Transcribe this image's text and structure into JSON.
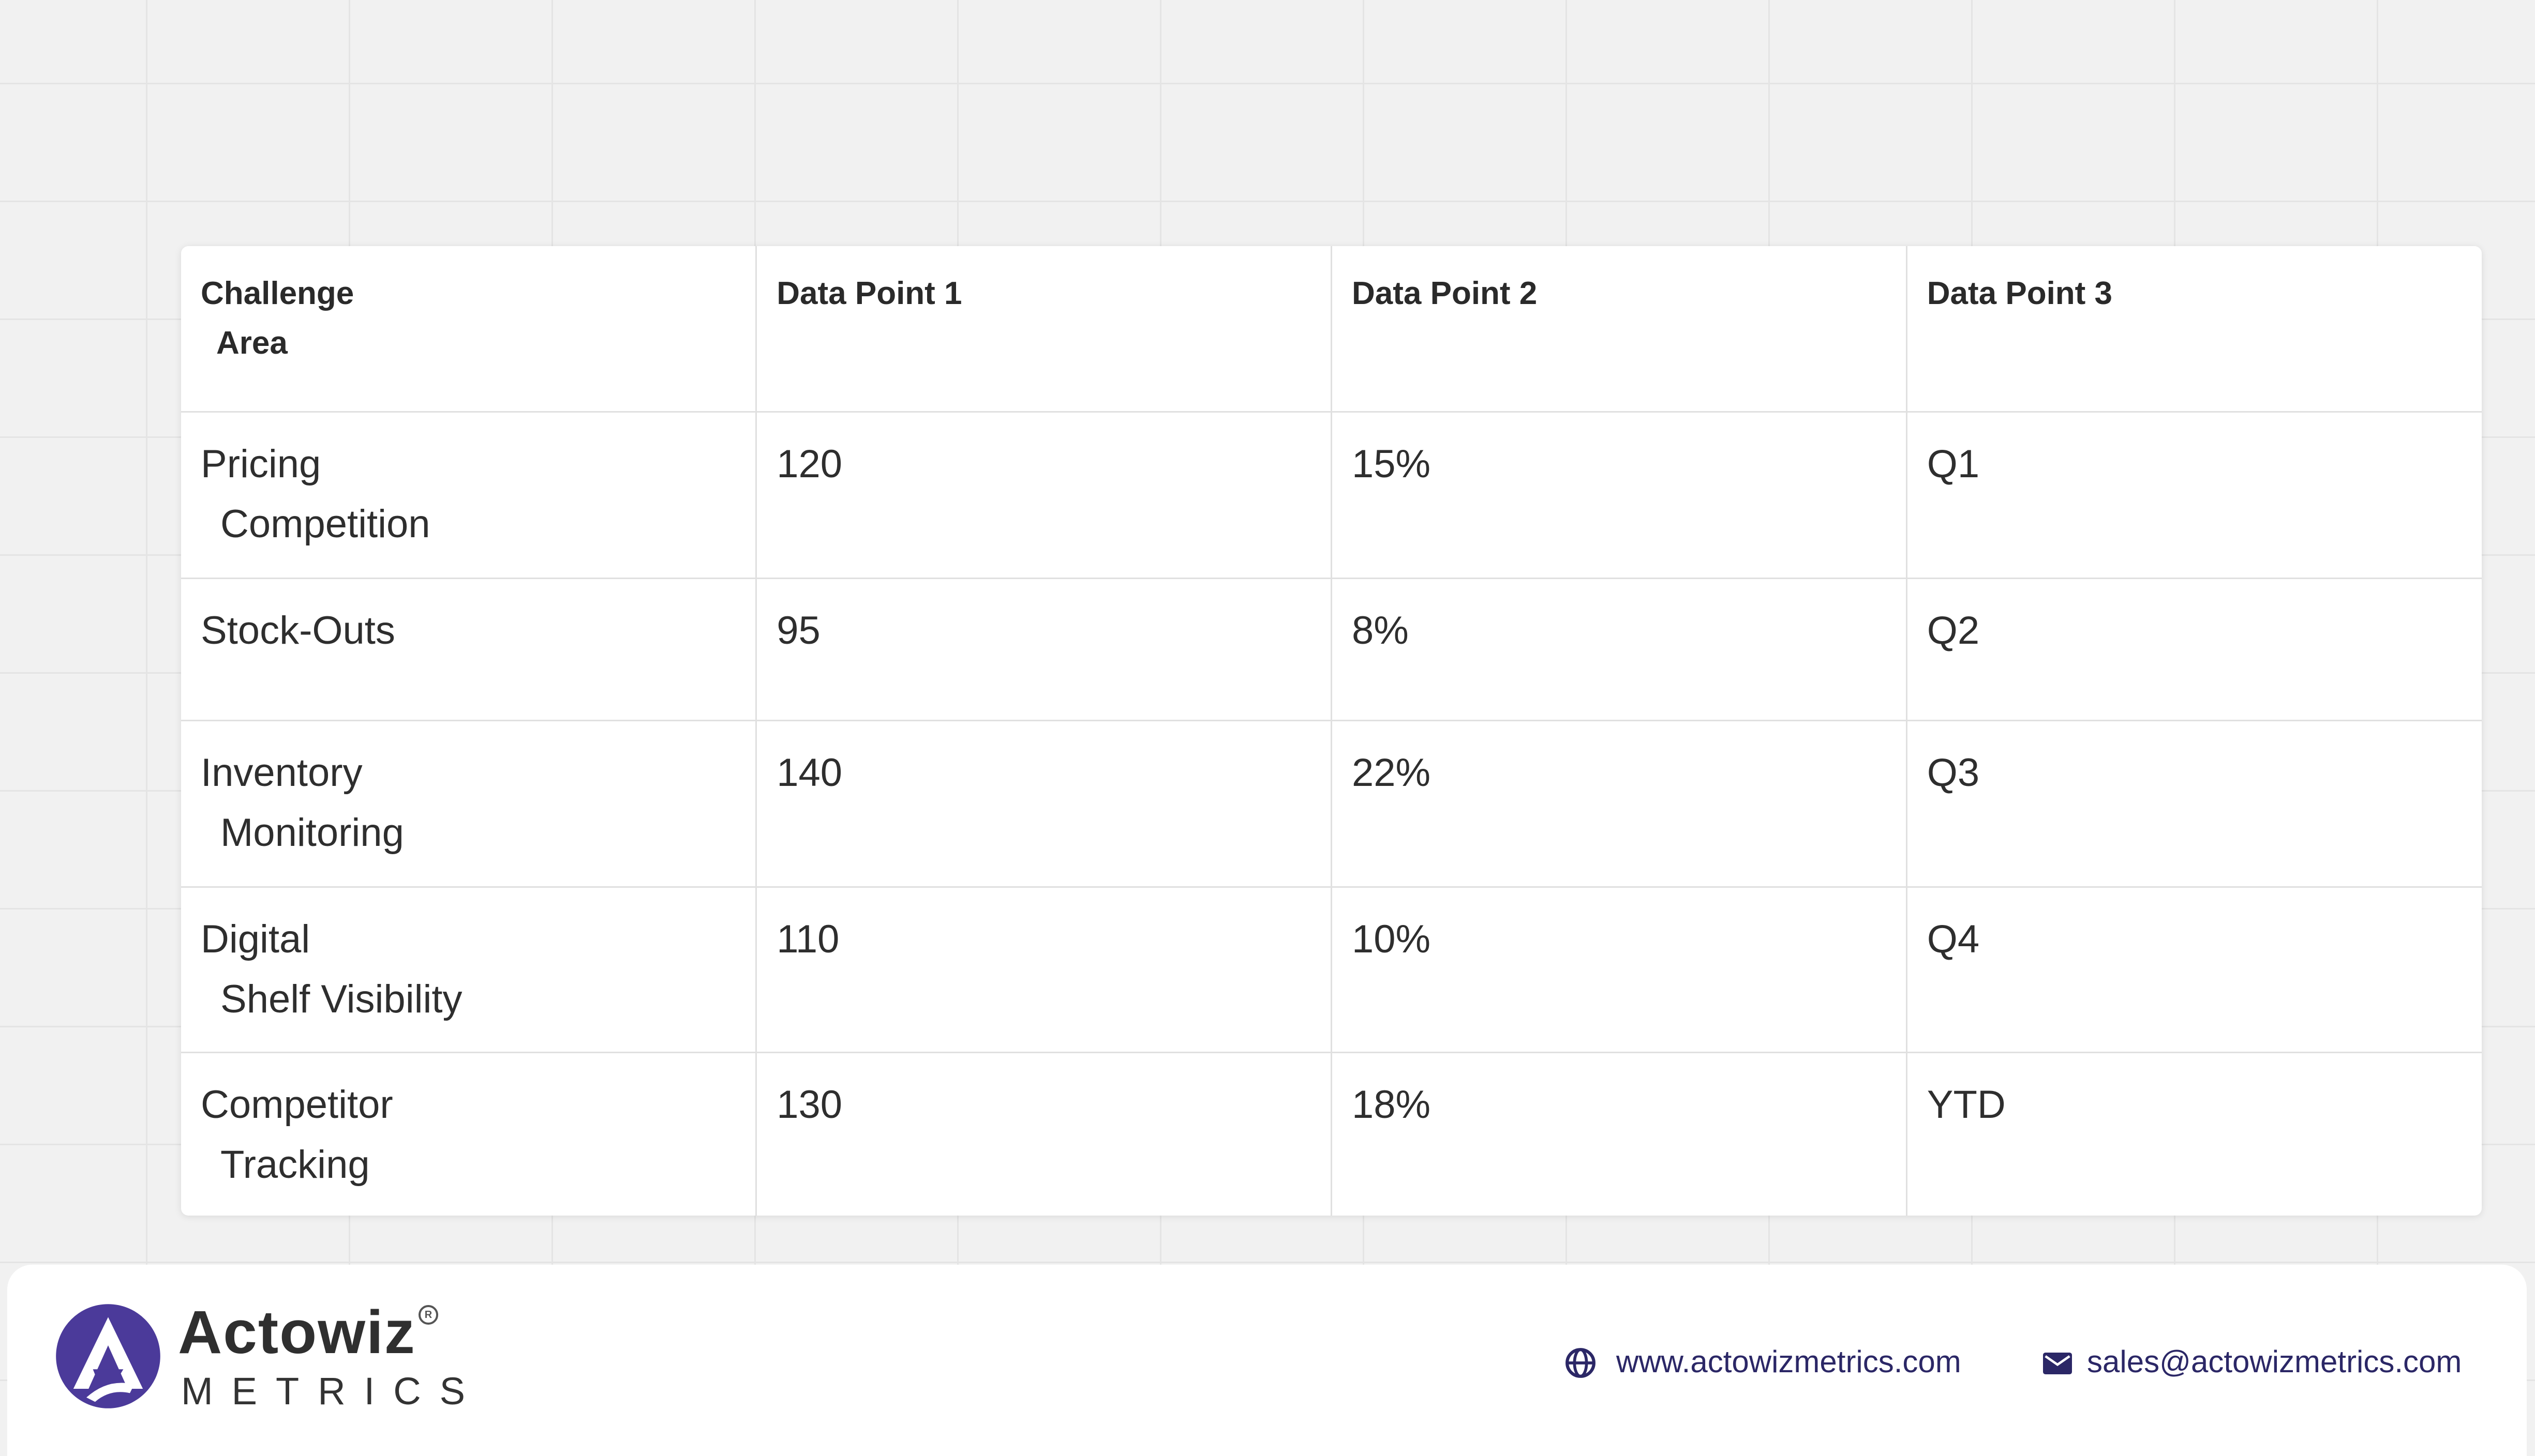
{
  "table": {
    "headers": [
      {
        "line1": "Challenge",
        "line2": "Area"
      },
      {
        "line1": "Data Point 1",
        "line2": ""
      },
      {
        "line1": "Data Point 2",
        "line2": ""
      },
      {
        "line1": "Data Point 3",
        "line2": ""
      }
    ],
    "rows": [
      {
        "area_line1": "Pricing",
        "area_line2": "Competition",
        "dp1": "120",
        "dp2": "15%",
        "dp3": "Q1"
      },
      {
        "area_line1": "Stock-Outs",
        "area_line2": "",
        "dp1": "95",
        "dp2": "8%",
        "dp3": "Q2"
      },
      {
        "area_line1": "Inventory",
        "area_line2": "Monitoring",
        "dp1": "140",
        "dp2": "22%",
        "dp3": "Q3"
      },
      {
        "area_line1": "Digital",
        "area_line2": "Shelf Visibility",
        "dp1": "110",
        "dp2": "10%",
        "dp3": "Q4"
      },
      {
        "area_line1": "Competitor",
        "area_line2": "Tracking",
        "dp1": "130",
        "dp2": "18%",
        "dp3": "YTD"
      }
    ]
  },
  "footer": {
    "brand_name": "Actowiz",
    "brand_sub": "METRICS",
    "website": "www.actowizmetrics.com",
    "email": "sales@actowizmetrics.com"
  },
  "colors": {
    "brand_navy": "#2b2766",
    "logo_purple": "#4b3a9a",
    "page_bg": "#f1f1f1"
  },
  "icons": {
    "website": "globe-icon",
    "email": "mail-icon",
    "logo": "actowiz-logo",
    "registered": "registered-trademark-icon"
  }
}
